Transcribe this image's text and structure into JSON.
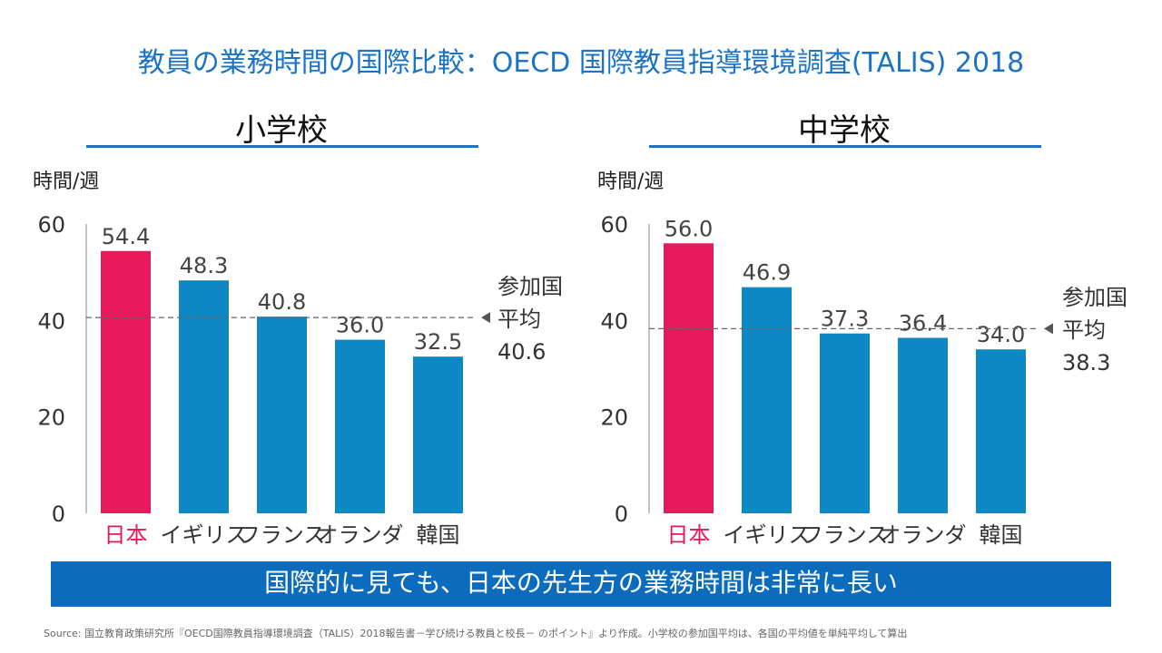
{
  "page_title": "教員の業務時間の国際比較：OECD 国際教員指導環境調査(TALIS) 2018",
  "colors": {
    "accent": "#1a73c6",
    "japan_bar": "#e8195a",
    "other_bar": "#0e88c4",
    "banner": "#0b6bbd"
  },
  "panels": [
    {
      "title": "小学校",
      "unit": "時間/週",
      "avg_label": [
        "参加国",
        "平均",
        "40.6"
      ]
    },
    {
      "title": "中学校",
      "unit": "時間/週",
      "avg_label": [
        "参加国",
        "平均",
        "38.3"
      ]
    }
  ],
  "chart_data": [
    {
      "type": "bar",
      "title": "小学校",
      "ylabel": "時間/週",
      "categories": [
        "日本",
        "イギリス",
        "フランス",
        "オランダ",
        "韓国"
      ],
      "values": [
        54.4,
        48.3,
        40.8,
        36.0,
        32.5
      ],
      "value_labels": [
        "54.4",
        "48.3",
        "40.8",
        "36.0",
        "32.5"
      ],
      "highlight_index": 0,
      "ylim": [
        0,
        60
      ],
      "yticks": [
        0,
        20,
        40,
        60
      ],
      "ytick_labels": [
        "0",
        "20",
        "40",
        "60"
      ],
      "reference_line": 40.6
    },
    {
      "type": "bar",
      "title": "中学校",
      "ylabel": "時間/週",
      "categories": [
        "日本",
        "イギリス",
        "フランス",
        "オランダ",
        "韓国"
      ],
      "values": [
        56.0,
        46.9,
        37.3,
        36.4,
        34.0
      ],
      "value_labels": [
        "56.0",
        "46.9",
        "37.3",
        "36.4",
        "34.0"
      ],
      "highlight_index": 0,
      "ylim": [
        0,
        60
      ],
      "yticks": [
        0,
        20,
        40,
        60
      ],
      "ytick_labels": [
        "0",
        "20",
        "40",
        "60"
      ],
      "reference_line": 38.3
    }
  ],
  "banner_text": "国際的に見ても、日本の先生方の業務時間は非常に長い",
  "source_text": "Source: 国立教育政策研究所『OECD国際教員指導環境調査（TALIS）2018報告書－学び続ける教員と校長－ のポイント』より作成。小学校の参加国平均は、各国の平均値を単純平均して算出"
}
